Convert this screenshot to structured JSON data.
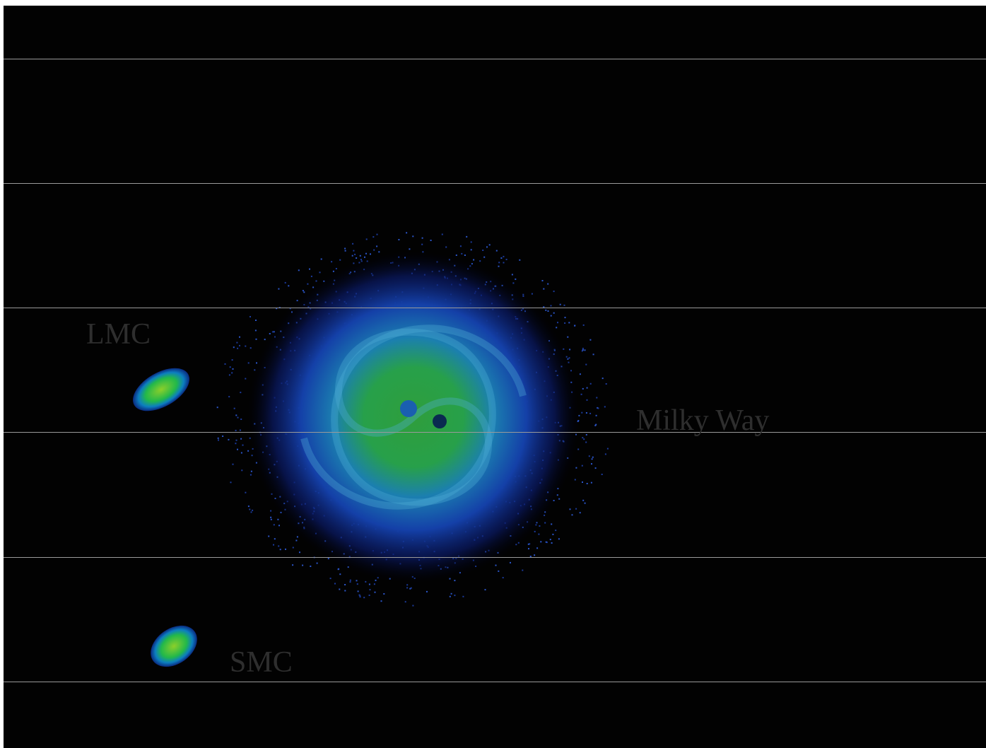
{
  "labels": {
    "lmc": "LMC",
    "milky_way": "Milky Way",
    "smc": "SMC"
  }
}
